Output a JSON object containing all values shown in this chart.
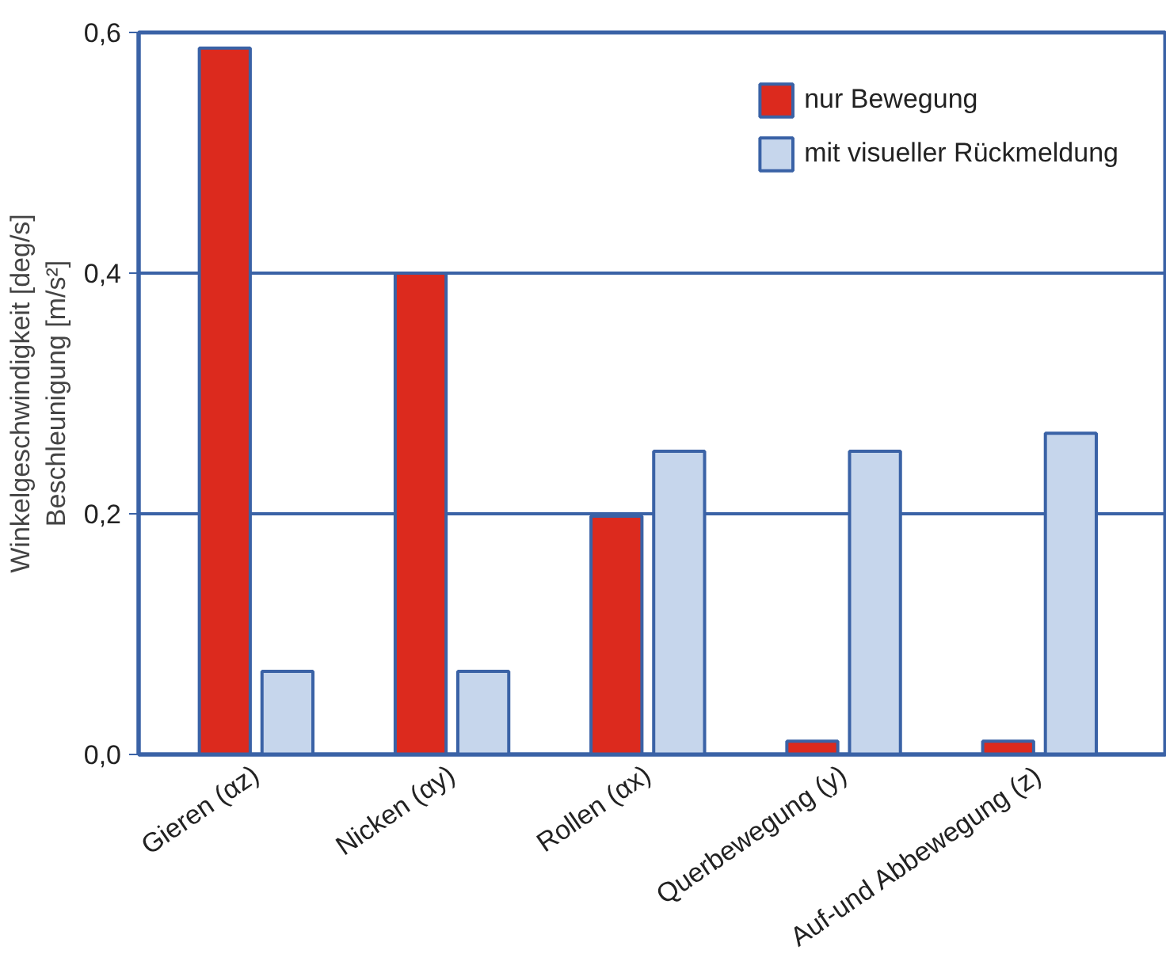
{
  "chart_data": {
    "type": "bar",
    "ylabel": "Winkelgeschwindigkeit [deg/s]",
    "y2label": "Beschleunigung [m/s²]",
    "categories": [
      "Gieren (αz)",
      "Nicken (αy)",
      "Rollen (αx)",
      "Querbewegung (y)",
      "Auf-und Abbewegung (z)"
    ],
    "series": [
      {
        "name": "nur Bewegung",
        "color": "#dc2a1e",
        "values": [
          0.587,
          0.4,
          0.198,
          0.011,
          0.011
        ]
      },
      {
        "name": "mit visueller Rückmeldung",
        "color": "#c6d6ec",
        "values": [
          0.069,
          0.069,
          0.252,
          0.252,
          0.267
        ]
      }
    ],
    "ylim": [
      0,
      0.6
    ],
    "yticks": [
      {
        "value": 0,
        "label": "0,0"
      },
      {
        "value": 0.2,
        "label": "0,2"
      },
      {
        "value": 0.4,
        "label": "0,4"
      },
      {
        "value": 0.6,
        "label": "0,6"
      }
    ],
    "grid": "y",
    "legend": "top right"
  }
}
